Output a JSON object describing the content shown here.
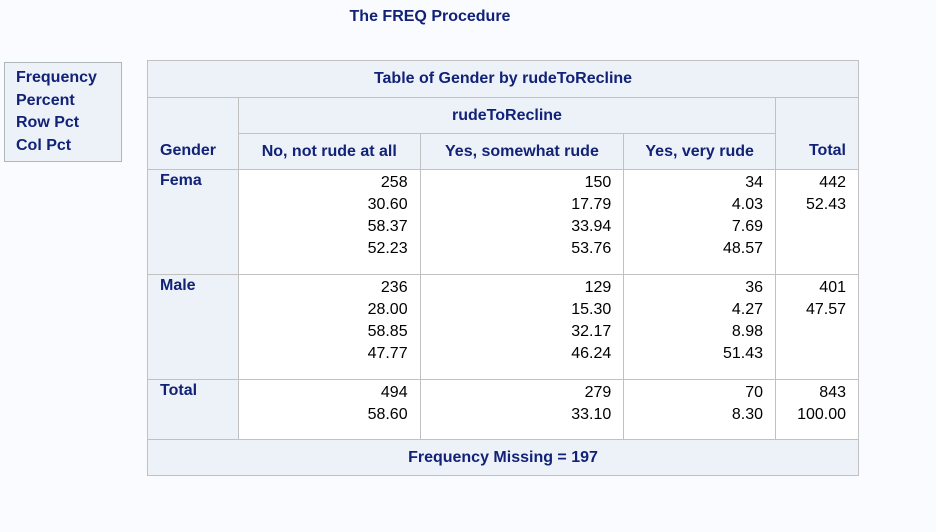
{
  "procedure_title": "The FREQ Procedure",
  "legend": [
    "Frequency",
    "Percent",
    "Row Pct",
    "Col Pct"
  ],
  "table": {
    "title": "Table of Gender by rudeToRecline",
    "column_variable": "rudeToRecline",
    "row_variable": "Gender",
    "columns": [
      "No, not rude at all",
      "Yes, somewhat rude",
      "Yes, very rude",
      "Total"
    ],
    "rows": [
      {
        "label": "Fema",
        "cells": [
          [
            "258",
            "30.60",
            "58.37",
            "52.23"
          ],
          [
            "150",
            "17.79",
            "33.94",
            "53.76"
          ],
          [
            "34",
            "4.03",
            "7.69",
            "48.57"
          ],
          [
            "442",
            "52.43"
          ]
        ]
      },
      {
        "label": "Male",
        "cells": [
          [
            "236",
            "28.00",
            "58.85",
            "47.77"
          ],
          [
            "129",
            "15.30",
            "32.17",
            "46.24"
          ],
          [
            "36",
            "4.27",
            "8.98",
            "51.43"
          ],
          [
            "401",
            "47.57"
          ]
        ]
      },
      {
        "label": "Total",
        "cells": [
          [
            "494",
            "58.60"
          ],
          [
            "279",
            "33.10"
          ],
          [
            "70",
            "8.30"
          ],
          [
            "843",
            "100.00"
          ]
        ]
      }
    ],
    "footer": "Frequency Missing = 197"
  }
}
